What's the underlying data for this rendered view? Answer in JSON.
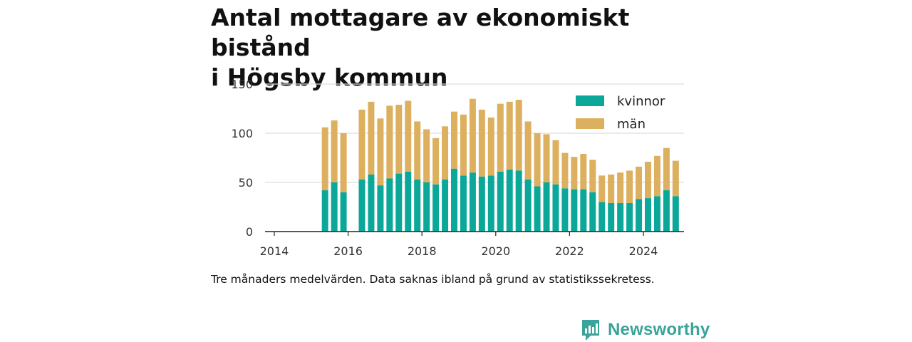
{
  "title_lines": [
    "Antal mottagare av ekonomiskt bistånd",
    "i Högsby kommun"
  ],
  "caption": "Tre månaders medelvärden. Data saknas ibland på grund av statistikssekretess.",
  "brand": {
    "name": "Newsworthy",
    "logo_icon": "bar-chart-speech-bubble-icon",
    "color": "#3aa39a"
  },
  "colors": {
    "kvinnor": "#0ba89a",
    "man": "#dcb05e",
    "grid": "#dddddd",
    "axis": "#222222"
  },
  "chart_data": {
    "type": "bar",
    "stacked": true,
    "title": "Antal mottagare av ekonomiskt bistånd i Högsby kommun",
    "x_unit": "quarter",
    "x": [
      "2015-Q2",
      "2015-Q3",
      "2015-Q4",
      "2016-Q1",
      "2016-Q2",
      "2016-Q3",
      "2016-Q4",
      "2017-Q1",
      "2017-Q2",
      "2017-Q3",
      "2017-Q4",
      "2018-Q1",
      "2018-Q2",
      "2018-Q3",
      "2018-Q4",
      "2019-Q1",
      "2019-Q2",
      "2019-Q3",
      "2019-Q4",
      "2020-Q1",
      "2020-Q2",
      "2020-Q3",
      "2020-Q4",
      "2021-Q1",
      "2021-Q2",
      "2021-Q3",
      "2021-Q4",
      "2022-Q1",
      "2022-Q2",
      "2022-Q3",
      "2022-Q4",
      "2023-Q1",
      "2023-Q2",
      "2023-Q3",
      "2023-Q4",
      "2024-Q1",
      "2024-Q2",
      "2024-Q3",
      "2024-Q4"
    ],
    "series": [
      {
        "name": "kvinnor",
        "color": "#0ba89a",
        "values": [
          42,
          50,
          40,
          null,
          53,
          58,
          47,
          54,
          59,
          61,
          53,
          50,
          48,
          53,
          64,
          57,
          60,
          56,
          57,
          61,
          63,
          62,
          53,
          46,
          50,
          48,
          44,
          43,
          43,
          40,
          30,
          29,
          29,
          29,
          33,
          34,
          36,
          42,
          36
        ]
      },
      {
        "name": "män",
        "color": "#dcb05e",
        "values": [
          64,
          63,
          60,
          null,
          71,
          74,
          68,
          74,
          70,
          72,
          59,
          54,
          47,
          54,
          58,
          62,
          75,
          68,
          59,
          69,
          69,
          72,
          59,
          54,
          49,
          45,
          36,
          33,
          36,
          33,
          27,
          29,
          31,
          33,
          33,
          37,
          41,
          43,
          36
        ]
      }
    ],
    "xaxis": {
      "ticks": [
        "2014",
        "2016",
        "2018",
        "2020",
        "2022",
        "2024"
      ],
      "range": [
        2013.75,
        2025.1
      ]
    },
    "yaxis": {
      "ticks": [
        "0",
        "50",
        "100",
        "150"
      ],
      "range": [
        0,
        150
      ]
    },
    "grid": true,
    "legend": {
      "position": "top-right",
      "entries": [
        "kvinnor",
        "män"
      ]
    }
  }
}
